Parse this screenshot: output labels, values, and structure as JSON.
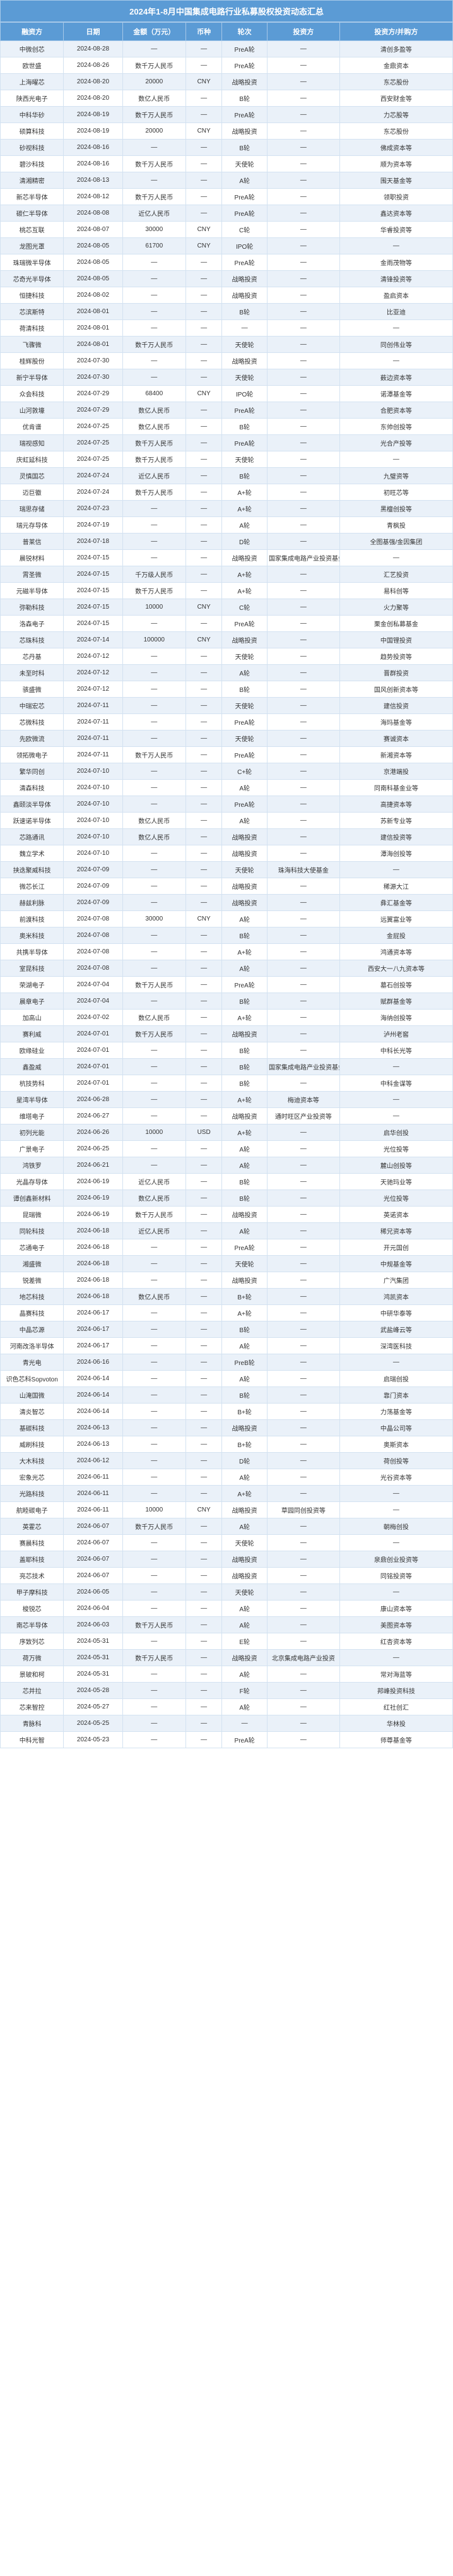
{
  "table_title": "2024年1-8月中国集成电路行业私募股权投资动态汇总",
  "style": {
    "header_bg": "#5b9bd5",
    "header_fg": "#ffffff",
    "row_odd_bg": "#eaf1f9",
    "row_even_bg": "#ffffff",
    "border_color": "#d3e2f1",
    "font_size_body": 10,
    "font_size_head": 11,
    "font_size_title": 13
  },
  "columns": [
    "融资方",
    "日期",
    "金额（万元）",
    "币种",
    "轮次",
    "投资方",
    "投资方/并购方"
  ],
  "rows": [
    [
      "中微创芯",
      "2024-08-28",
      "—",
      "—",
      "PreA轮",
      "—",
      "清创多盈等"
    ],
    [
      "欧世盛",
      "2024-08-26",
      "数千万人民币",
      "—",
      "PreA轮",
      "—",
      "金鼎资本"
    ],
    [
      "上海曜芯",
      "2024-08-20",
      "20000",
      "CNY",
      "战略投资",
      "—",
      "东芯股份"
    ],
    [
      "陕西光电子",
      "2024-08-20",
      "数亿人民币",
      "—",
      "B轮",
      "—",
      "西安财金等"
    ],
    [
      "中科华砂",
      "2024-08-19",
      "数千万人民币",
      "—",
      "PreA轮",
      "—",
      "力芯股等"
    ],
    [
      "硕算科技",
      "2024-08-19",
      "20000",
      "CNY",
      "战略投资",
      "—",
      "东芯股份"
    ],
    [
      "砂视科技",
      "2024-08-16",
      "—",
      "—",
      "B轮",
      "—",
      "佛成资本等"
    ],
    [
      "碧沙科技",
      "2024-08-16",
      "数千万人民币",
      "—",
      "天使轮",
      "—",
      "顺为资本等"
    ],
    [
      "清湘精密",
      "2024-08-13",
      "—",
      "—",
      "A轮",
      "—",
      "围天基金等"
    ],
    [
      "新芯半导体",
      "2024-08-12",
      "数千万人民币",
      "—",
      "PreA轮",
      "—",
      "领职投资"
    ],
    [
      "碳仁半导体",
      "2024-08-08",
      "近亿人民币",
      "—",
      "PreA轮",
      "—",
      "鑫达资本等"
    ],
    [
      "桃芯互联",
      "2024-08-07",
      "30000",
      "CNY",
      "C轮",
      "—",
      "华睿投资等"
    ],
    [
      "龙图光罩",
      "2024-08-05",
      "61700",
      "CNY",
      "IPO轮",
      "—",
      "—"
    ],
    [
      "珠瑞微半导体",
      "2024-08-05",
      "—",
      "—",
      "PreA轮",
      "—",
      "金雨茂物等"
    ],
    [
      "芯奇光半导体",
      "2024-08-05",
      "—",
      "—",
      "战略投资",
      "—",
      "清锋投资等"
    ],
    [
      "恒捷科技",
      "2024-08-02",
      "—",
      "—",
      "战略投资",
      "—",
      "盈启资本"
    ],
    [
      "芯滨斯特",
      "2024-08-01",
      "—",
      "—",
      "B轮",
      "—",
      "比亚迪"
    ],
    [
      "荷清科技",
      "2024-08-01",
      "—",
      "—",
      "—",
      "—",
      "—"
    ],
    [
      "飞骤微",
      "2024-08-01",
      "数千万人民币",
      "—",
      "天使轮",
      "—",
      "同创伟业等"
    ],
    [
      "桂辉股份",
      "2024-07-30",
      "—",
      "—",
      "战略投资",
      "—",
      "—"
    ],
    [
      "新宁半导体",
      "2024-07-30",
      "—",
      "—",
      "天使轮",
      "—",
      "薮边资本等"
    ],
    [
      "众会科技",
      "2024-07-29",
      "68400",
      "CNY",
      "IPO轮",
      "—",
      "诺潭基金等"
    ],
    [
      "山河敦壕",
      "2024-07-29",
      "数亿人民币",
      "—",
      "PreA轮",
      "—",
      "合肥资本等"
    ],
    [
      "优肯谱",
      "2024-07-25",
      "数亿人民币",
      "—",
      "B轮",
      "—",
      "东帅创投等"
    ],
    [
      "瑞视感知",
      "2024-07-25",
      "数千万人民币",
      "—",
      "PreA轮",
      "—",
      "光合产投等"
    ],
    [
      "庆虹延科技",
      "2024-07-25",
      "数千万人民币",
      "—",
      "天使轮",
      "—",
      "—"
    ],
    [
      "灵慎国芯",
      "2024-07-24",
      "近亿人民币",
      "—",
      "B轮",
      "—",
      "九璧资等"
    ],
    [
      "迈巨徽",
      "2024-07-24",
      "数千万人民币",
      "—",
      "A+轮",
      "—",
      "初旺芯等"
    ],
    [
      "瑞思存储",
      "2024-07-23",
      "—",
      "—",
      "A+轮",
      "—",
      "黑檀创投等"
    ],
    [
      "瑞元存导体",
      "2024-07-19",
      "—",
      "—",
      "A轮",
      "—",
      "青枫投"
    ],
    [
      "普莱信",
      "2024-07-18",
      "—",
      "—",
      "D轮",
      "—",
      "全图基强/金因集团"
    ],
    [
      "晨锐材料",
      "2024-07-15",
      "—",
      "—",
      "战略投资",
      "国家集成电路产业投资基金",
      "—"
    ],
    [
      "霄圣微",
      "2024-07-15",
      "千万级人民币",
      "—",
      "A+轮",
      "—",
      "汇艺投资"
    ],
    [
      "元磁半导体",
      "2024-07-15",
      "数千万人民币",
      "—",
      "A+轮",
      "—",
      "易科创等"
    ],
    [
      "弥勒科技",
      "2024-07-15",
      "10000",
      "CNY",
      "C轮",
      "—",
      "火力聚等"
    ],
    [
      "洛森电子",
      "2024-07-15",
      "—",
      "—",
      "PreA轮",
      "—",
      "栗金创私募基金"
    ],
    [
      "芯珠科技",
      "2024-07-14",
      "100000",
      "CNY",
      "战略投资",
      "—",
      "中国锂投资"
    ],
    [
      "芯丹基",
      "2024-07-12",
      "—",
      "—",
      "天使轮",
      "—",
      "趋势投资等"
    ],
    [
      "未至时科",
      "2024-07-12",
      "—",
      "—",
      "A轮",
      "—",
      "晋群投资"
    ],
    [
      "骇盛微",
      "2024-07-12",
      "—",
      "—",
      "B轮",
      "—",
      "国风创新资本等"
    ],
    [
      "中瑞宏芯",
      "2024-07-11",
      "—",
      "—",
      "天使轮",
      "—",
      "建信投资"
    ],
    [
      "芯微科技",
      "2024-07-11",
      "—",
      "—",
      "PreA轮",
      "—",
      "海玛基金等"
    ],
    [
      "先欧微流",
      "2024-07-11",
      "—",
      "—",
      "天使轮",
      "—",
      "赛诚资本"
    ],
    [
      "领拓微电子",
      "2024-07-11",
      "数千万人民币",
      "—",
      "PreA轮",
      "—",
      "新湘资本等"
    ],
    [
      "繁华同创",
      "2024-07-10",
      "—",
      "—",
      "C+轮",
      "—",
      "京港端投"
    ],
    [
      "清森科技",
      "2024-07-10",
      "—",
      "—",
      "A轮",
      "—",
      "同南科基金业等"
    ],
    [
      "鑫颐淡半导体",
      "2024-07-10",
      "—",
      "—",
      "PreA轮",
      "—",
      "高捷资本等"
    ],
    [
      "跃速诺半导体",
      "2024-07-10",
      "数亿人民币",
      "—",
      "A轮",
      "—",
      "苏新专业等"
    ],
    [
      "芯路通讯",
      "2024-07-10",
      "数亿人民币",
      "—",
      "战略投资",
      "—",
      "建信投资等"
    ],
    [
      "魏立学术",
      "2024-07-10",
      "—",
      "—",
      "战略投资",
      "—",
      "潭海创投等"
    ],
    [
      "挟迭聚威科技",
      "2024-07-09",
      "—",
      "—",
      "天使轮",
      "珠海科技大使基金",
      "—"
    ],
    [
      "微芯长江",
      "2024-07-09",
      "—",
      "—",
      "战略投资",
      "—",
      "稀源大江"
    ],
    [
      "赫兹利脉",
      "2024-07-09",
      "—",
      "—",
      "战略投资",
      "—",
      "彝汇基金等"
    ],
    [
      "前渡科技",
      "2024-07-08",
      "30000",
      "CNY",
      "A轮",
      "—",
      "远翼富业等"
    ],
    [
      "奥米科技",
      "2024-07-08",
      "—",
      "—",
      "B轮",
      "—",
      "金屁投"
    ],
    [
      "共携半导体",
      "2024-07-08",
      "—",
      "—",
      "A+轮",
      "—",
      "鸿通资本等"
    ],
    [
      "室昆科技",
      "2024-07-08",
      "—",
      "—",
      "A轮",
      "—",
      "西安大一八九资本等"
    ],
    [
      "荣湖电子",
      "2024-07-04",
      "数千万人民币",
      "—",
      "PreA轮",
      "—",
      "墓石创投等"
    ],
    [
      "晨章电子",
      "2024-07-04",
      "—",
      "—",
      "B轮",
      "—",
      "赋群基金等"
    ],
    [
      "加高山",
      "2024-07-02",
      "数亿人民币",
      "—",
      "A+轮",
      "—",
      "海纳创投等"
    ],
    [
      "赛利威",
      "2024-07-01",
      "数千万人民币",
      "—",
      "战略投资",
      "—",
      "泸州老窖"
    ],
    [
      "欧缘硅业",
      "2024-07-01",
      "—",
      "—",
      "B轮",
      "—",
      "中科长光等"
    ],
    [
      "鑫盈威",
      "2024-07-01",
      "—",
      "—",
      "B轮",
      "国家集成电路产业投资基金等",
      "—"
    ],
    [
      "杭技势科",
      "2024-07-01",
      "—",
      "—",
      "B轮",
      "—",
      "中科金谋等"
    ],
    [
      "星湾半导体",
      "2024-06-28",
      "—",
      "—",
      "A+轮",
      "梅迪资本等",
      "—"
    ],
    [
      "维塔电子",
      "2024-06-27",
      "—",
      "—",
      "战略投资",
      "通时旺区产业投资等",
      "—"
    ],
    [
      "初列光能",
      "2024-06-26",
      "10000",
      "USD",
      "A+轮",
      "—",
      "启华创投"
    ],
    [
      "广景电子",
      "2024-06-25",
      "—",
      "—",
      "A轮",
      "—",
      "光位投等"
    ],
    [
      "鸿铁罗",
      "2024-06-21",
      "—",
      "—",
      "A轮",
      "—",
      "麓山创投等"
    ],
    [
      "光晶存导体",
      "2024-06-19",
      "近亿人民币",
      "—",
      "B轮",
      "—",
      "天驰玛业等"
    ],
    [
      "谭创鑫新材料",
      "2024-06-19",
      "数亿人民币",
      "—",
      "B轮",
      "—",
      "光位投等"
    ],
    [
      "昆瑞微",
      "2024-06-19",
      "数千万人民币",
      "—",
      "战略投资",
      "—",
      "英诺资本"
    ],
    [
      "同轮科技",
      "2024-06-18",
      "近亿人民币",
      "—",
      "A轮",
      "—",
      "稀兄资本等"
    ],
    [
      "芯通电子",
      "2024-06-18",
      "—",
      "—",
      "PreA轮",
      "—",
      "开元国创"
    ],
    [
      "湘盛微",
      "2024-06-18",
      "—",
      "—",
      "天使轮",
      "—",
      "中规基金等"
    ],
    [
      "锐差微",
      "2024-06-18",
      "—",
      "—",
      "战略投资",
      "—",
      "广汽集团"
    ],
    [
      "地芯科技",
      "2024-06-18",
      "数亿人民币",
      "—",
      "B+轮",
      "—",
      "鸿凯资本"
    ],
    [
      "晶赛科技",
      "2024-06-17",
      "—",
      "—",
      "A+轮",
      "—",
      "中研华泰等"
    ],
    [
      "中晶芯源",
      "2024-06-17",
      "—",
      "—",
      "B轮",
      "—",
      "武盐峰云等"
    ],
    [
      "河南改洛半导体",
      "2024-06-17",
      "—",
      "—",
      "A轮",
      "—",
      "深湾医科技"
    ],
    [
      "青光电",
      "2024-06-16",
      "—",
      "—",
      "PreB轮",
      "—",
      "—"
    ],
    [
      "识色芯科Sopvoton",
      "2024-06-14",
      "—",
      "—",
      "A轮",
      "—",
      "启瑞创投"
    ],
    [
      "山淹国微",
      "2024-06-14",
      "—",
      "—",
      "B轮",
      "—",
      "靠门资本"
    ],
    [
      "清炎智芯",
      "2024-06-14",
      "—",
      "—",
      "B+轮",
      "—",
      "力荡基金等"
    ],
    [
      "基碳科技",
      "2024-06-13",
      "—",
      "—",
      "战略投资",
      "—",
      "中晶公司等"
    ],
    [
      "威刷科技",
      "2024-06-13",
      "—",
      "—",
      "B+轮",
      "—",
      "奥斯资本"
    ],
    [
      "大木科技",
      "2024-06-12",
      "—",
      "—",
      "D轮",
      "—",
      "荷创投等"
    ],
    [
      "宏象光芯",
      "2024-06-11",
      "—",
      "—",
      "A轮",
      "—",
      "光谷资本等"
    ],
    [
      "光路科技",
      "2024-06-11",
      "—",
      "—",
      "A+轮",
      "—",
      "—"
    ],
    [
      "航睦碳电子",
      "2024-06-11",
      "10000",
      "CNY",
      "战略投资",
      "草园同创投资等",
      "—"
    ],
    [
      "英霍芯",
      "2024-06-07",
      "数千万人民币",
      "—",
      "A轮",
      "—",
      "朝梅创投"
    ],
    [
      "赛晨科技",
      "2024-06-07",
      "—",
      "—",
      "天使轮",
      "—",
      "—"
    ],
    [
      "盖耶科技",
      "2024-06-07",
      "—",
      "—",
      "战略投资",
      "—",
      "泉鼎创业投资等"
    ],
    [
      "亮芯技术",
      "2024-06-07",
      "—",
      "—",
      "战略投资",
      "—",
      "同铭投资等"
    ],
    [
      "甲子摩科技",
      "2024-06-05",
      "—",
      "—",
      "天使轮",
      "—",
      "—"
    ],
    [
      "梭锐芯",
      "2024-06-04",
      "—",
      "—",
      "A轮",
      "—",
      "康山资本等"
    ],
    [
      "南芯半导体",
      "2024-06-03",
      "数千万人民币",
      "—",
      "A轮",
      "—",
      "美图资本等"
    ],
    [
      "序致列芯",
      "2024-05-31",
      "—",
      "—",
      "E轮",
      "—",
      "红杏资本等"
    ],
    [
      "荷万微",
      "2024-05-31",
      "数千万人民币",
      "—",
      "战略投资",
      "北京集成电路产业投资",
      "—"
    ],
    [
      "景玻和柯",
      "2024-05-31",
      "—",
      "—",
      "A轮",
      "—",
      "常对海蓝等"
    ],
    [
      "芯并拉",
      "2024-05-28",
      "—",
      "—",
      "F轮",
      "—",
      "邦峰投资科技"
    ],
    [
      "芯来智控",
      "2024-05-27",
      "—",
      "—",
      "A轮",
      "—",
      "红社创汇"
    ],
    [
      "青脉科",
      "2024-05-25",
      "—",
      "—",
      "—",
      "—",
      "华林投"
    ],
    [
      "中科光智",
      "2024-05-23",
      "—",
      "—",
      "PreA轮",
      "—",
      "师尊基金等"
    ]
  ]
}
